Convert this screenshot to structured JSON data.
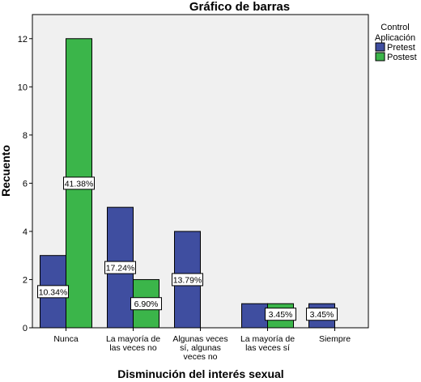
{
  "chart_data": {
    "type": "bar",
    "title": "Gráfico de barras",
    "xlabel": "Disminución del interés sexual",
    "ylabel": "Recuento",
    "ylim": [
      0,
      13
    ],
    "yticks": [
      0,
      2,
      4,
      6,
      8,
      10,
      12
    ],
    "grid": false,
    "legend": {
      "title": [
        "Control",
        "Aplicación"
      ],
      "position": "top-right"
    },
    "categories": [
      [
        "Nunca"
      ],
      [
        "La mayoría de",
        "las veces no"
      ],
      [
        "Algunas veces",
        "sí, algunas",
        "veces no"
      ],
      [
        "La mayoría de",
        "las veces sí"
      ],
      [
        "Siempre"
      ]
    ],
    "series": [
      {
        "name": "Pretest",
        "color": "#3f4ea0",
        "values": [
          3,
          5,
          4,
          1,
          1
        ],
        "labels": [
          "10.34%",
          "17.24%",
          "13.79%",
          "",
          "3.45%"
        ]
      },
      {
        "name": "Postest",
        "color": "#3bb54a",
        "values": [
          12,
          2,
          0,
          1,
          0
        ],
        "labels": [
          "41.38%",
          "6.90%",
          "",
          "3.45%",
          ""
        ]
      }
    ]
  }
}
